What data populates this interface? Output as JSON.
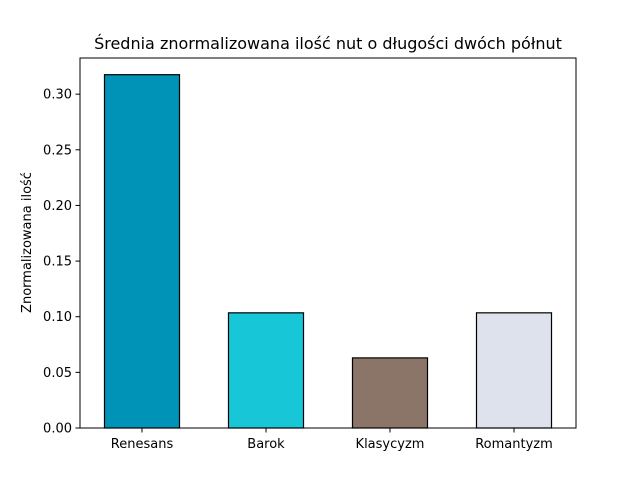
{
  "chart_data": {
    "type": "bar",
    "title": "Średnia znormalizowana ilość nut o długości dwóch półnut",
    "xlabel": "",
    "ylabel": "Znormalizowana ilość",
    "categories": [
      "Renesans",
      "Barok",
      "Klasycyzm",
      "Romantyzm"
    ],
    "values": [
      0.3175,
      0.1035,
      0.063,
      0.1035
    ],
    "colors": [
      "#0093b8",
      "#17c7d8",
      "#8b7468",
      "#dde2ec"
    ],
    "edge_color": "#000000",
    "ylim": [
      0,
      0.3325
    ],
    "yticks": [
      0.0,
      0.05,
      0.1,
      0.15,
      0.2,
      0.25,
      0.3
    ],
    "ytick_labels": [
      "0.00",
      "0.05",
      "0.10",
      "0.15",
      "0.20",
      "0.25",
      "0.30"
    ],
    "grid": false,
    "legend": "none"
  }
}
